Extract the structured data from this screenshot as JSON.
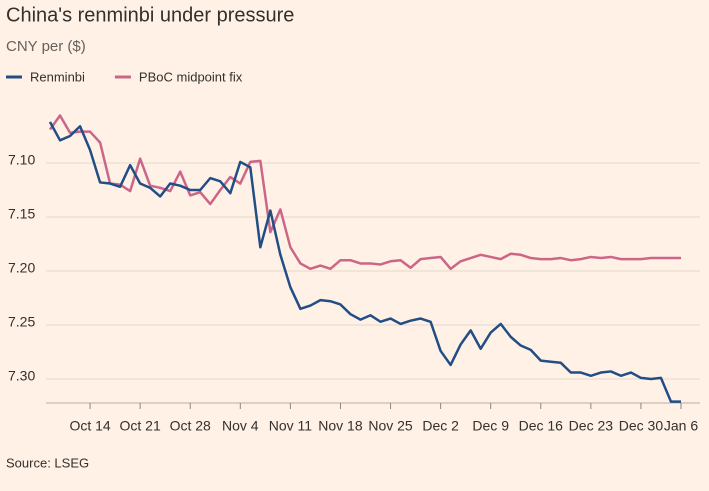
{
  "chart_data": {
    "type": "line",
    "title": "China's renminbi under pressure",
    "subtitle": "CNY per ($)",
    "source": "Source: LSEG",
    "categories": [
      null,
      null,
      null,
      null,
      "Oct 14",
      null,
      null,
      null,
      null,
      "Oct 21",
      null,
      null,
      null,
      null,
      "Oct 28",
      null,
      null,
      null,
      null,
      "Nov 4",
      null,
      null,
      null,
      null,
      "Nov 11",
      null,
      null,
      null,
      null,
      "Nov 18",
      null,
      null,
      null,
      null,
      "Nov 25",
      null,
      null,
      null,
      null,
      "Dec 2",
      null,
      null,
      null,
      null,
      "Dec 9",
      null,
      null,
      null,
      null,
      "Dec 16",
      null,
      null,
      null,
      null,
      "Dec 23",
      null,
      null,
      null,
      null,
      "Dec 30",
      null,
      null,
      null,
      "Jan 6"
    ],
    "series": [
      {
        "name": "Renminbi",
        "color": "#224d86",
        "values": [
          7.062,
          7.079,
          7.075,
          7.066,
          7.088,
          7.118,
          7.119,
          7.122,
          7.102,
          7.119,
          7.123,
          7.131,
          7.119,
          7.121,
          7.125,
          7.125,
          7.114,
          7.117,
          7.128,
          7.099,
          7.104,
          7.178,
          7.144,
          7.185,
          7.215,
          7.235,
          7.232,
          7.227,
          7.228,
          7.231,
          7.24,
          7.245,
          7.241,
          7.247,
          7.244,
          7.249,
          7.246,
          7.244,
          7.247,
          7.274,
          7.287,
          7.268,
          7.255,
          7.272,
          7.257,
          7.249,
          7.261,
          7.269,
          7.273,
          7.283,
          7.284,
          7.285,
          7.294,
          7.294,
          7.297,
          7.294,
          7.293,
          7.297,
          7.294,
          7.299,
          7.3,
          7.299,
          7.321,
          7.321
        ]
      },
      {
        "name": "PBoC midpoint fix",
        "color": "#cc6688",
        "values": [
          7.069,
          7.056,
          7.072,
          7.071,
          7.071,
          7.081,
          7.119,
          7.12,
          7.126,
          7.096,
          7.121,
          7.123,
          7.126,
          7.108,
          7.13,
          7.127,
          7.138,
          7.125,
          7.113,
          7.119,
          7.099,
          7.098,
          7.164,
          7.143,
          7.178,
          7.193,
          7.198,
          7.195,
          7.198,
          7.19,
          7.19,
          7.193,
          7.193,
          7.194,
          7.191,
          7.19,
          7.197,
          7.189,
          7.188,
          7.187,
          7.198,
          7.191,
          7.188,
          7.185,
          7.187,
          7.189,
          7.184,
          7.185,
          7.188,
          7.189,
          7.189,
          7.188,
          7.19,
          7.189,
          7.187,
          7.188,
          7.187,
          7.189,
          7.189,
          7.189,
          7.188,
          7.188,
          7.188,
          7.188
        ]
      }
    ],
    "ylim": [
      7.04,
      7.32
    ],
    "yticks": [
      {
        "value": 7.1,
        "label": "7.10"
      },
      7.15,
      {
        "value": 7.2,
        "label": "7.20"
      },
      7.25,
      {
        "value": 7.3,
        "label": "7.30"
      }
    ],
    "y_inverted": true,
    "grid": true
  }
}
